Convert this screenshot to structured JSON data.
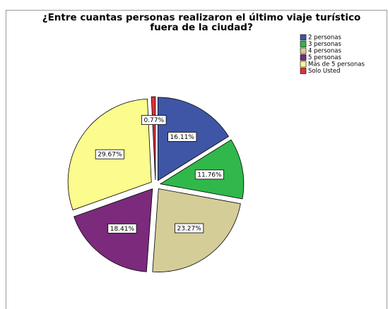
{
  "chart_data": {
    "type": "pie",
    "title": "¿Entre cuantas personas realizaron el último viaje turístico fuera de la ciudad?",
    "categories": [
      "2 personas",
      "3 personas",
      "4 personas",
      "5 personas",
      "Más de 5 personas",
      "Solo Usted"
    ],
    "values": [
      16.11,
      11.76,
      23.27,
      18.41,
      29.67,
      0.77
    ],
    "value_labels": [
      "16.11%",
      "11.76%",
      "23.27%",
      "18.41%",
      "29.67%",
      "0.77%"
    ],
    "colors": [
      "#3f56a6",
      "#30b84b",
      "#d4cd98",
      "#7c2a7c",
      "#fbfb8e",
      "#e0323c"
    ],
    "legend": "top-right"
  }
}
